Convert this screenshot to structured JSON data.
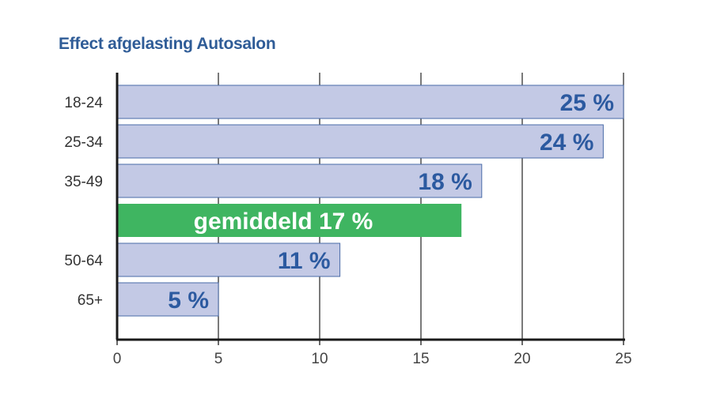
{
  "chart_data": {
    "type": "bar",
    "orientation": "horizontal",
    "title": "Effect afgelasting Autosalon",
    "xlim": [
      0,
      25
    ],
    "xticks": [
      "0",
      "5",
      "10",
      "15",
      "20",
      "25"
    ],
    "grid": true,
    "bars": [
      {
        "category": "18-24",
        "value": 25,
        "label": "25 %",
        "highlight": false
      },
      {
        "category": "25-34",
        "value": 24,
        "label": "24 %",
        "highlight": false
      },
      {
        "category": "35-49",
        "value": 18,
        "label": "18 %",
        "highlight": false
      },
      {
        "category": "",
        "value": 17,
        "label": "gemiddeld 17 %",
        "highlight": true
      },
      {
        "category": "50-64",
        "value": 11,
        "label": "11 %",
        "highlight": false
      },
      {
        "category": "65+",
        "value": 5,
        "label": "5 %",
        "highlight": false
      }
    ],
    "colors": {
      "bar_fill": "#c3c9e5",
      "bar_stroke": "#4a6ba8",
      "highlight_fill": "#3fb561",
      "label_color": "#2c5aa0",
      "highlight_label_color": "#ffffff",
      "axis_color": "#1a1a1a",
      "grid_color": "#333333"
    }
  }
}
